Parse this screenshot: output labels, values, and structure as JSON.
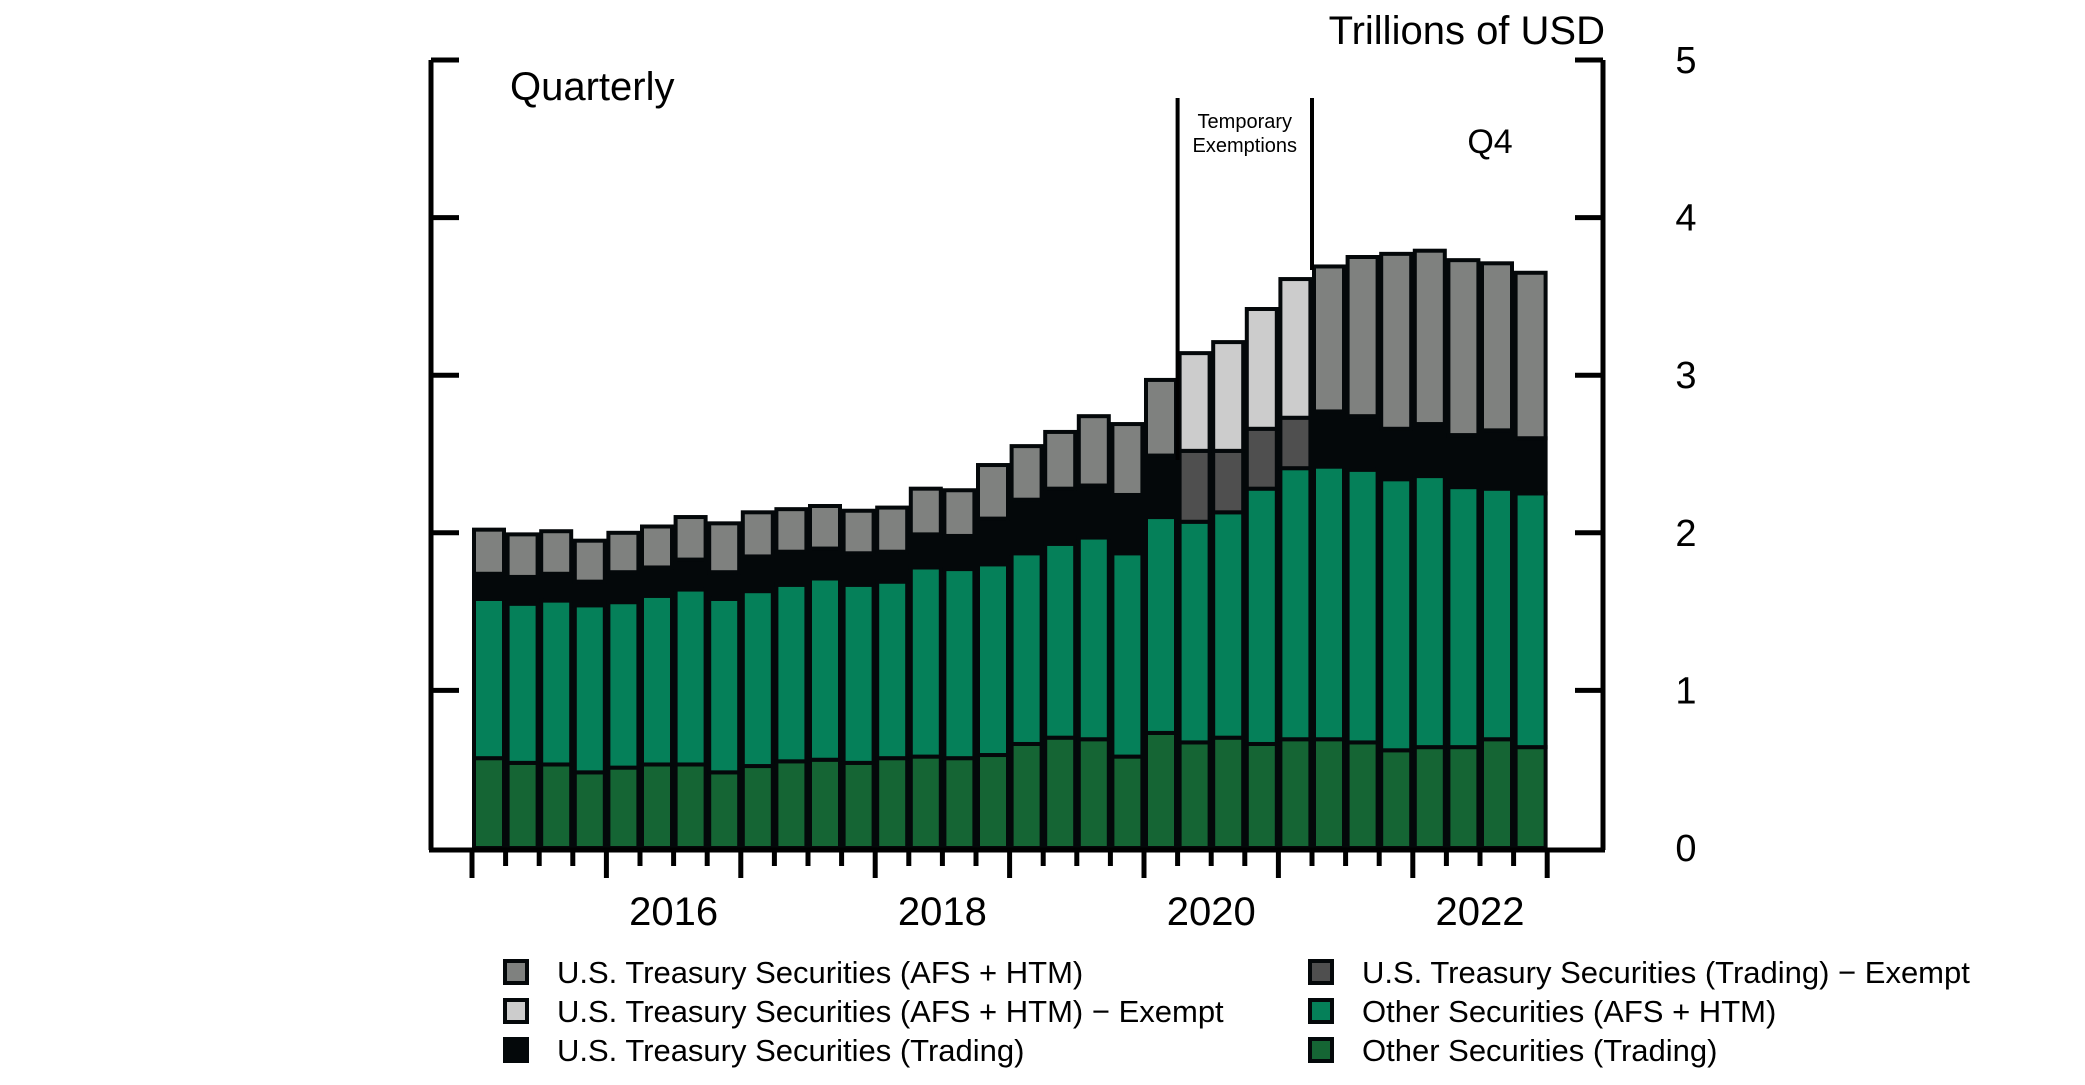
{
  "chart_data": {
    "type": "bar",
    "stacked": true,
    "frequency_label": "Quarterly",
    "ylabel": "Trillions of USD",
    "ylim": [
      0,
      5
    ],
    "yticks": [
      0,
      1,
      2,
      3,
      4,
      5
    ],
    "ytick_labels": [
      "0",
      "1",
      "2",
      "3",
      "4",
      "5"
    ],
    "xtick_labels": [
      {
        "label": "2016",
        "quarter_index": 6
      },
      {
        "label": "2018",
        "quarter_index": 14
      },
      {
        "label": "2020",
        "quarter_index": 22
      },
      {
        "label": "2022",
        "quarter_index": 30
      }
    ],
    "annotations": {
      "period_label_line1": "Temporary",
      "period_label_line2": "Exemptions",
      "period_start_index": 21,
      "period_end_index": 25,
      "latest_label": "Q4"
    },
    "categories": [
      "2015Q1",
      "2015Q2",
      "2015Q3",
      "2015Q4",
      "2016Q1",
      "2016Q2",
      "2016Q3",
      "2016Q4",
      "2017Q1",
      "2017Q2",
      "2017Q3",
      "2017Q4",
      "2018Q1",
      "2018Q2",
      "2018Q3",
      "2018Q4",
      "2019Q1",
      "2019Q2",
      "2019Q3",
      "2019Q4",
      "2020Q1",
      "2020Q2",
      "2020Q3",
      "2020Q4",
      "2021Q1",
      "2021Q2",
      "2021Q3",
      "2021Q4",
      "2022Q1",
      "2022Q2",
      "2022Q3",
      "2022Q4"
    ],
    "series": [
      {
        "name": "Other Securities (Trading)",
        "color": "#156534",
        "values": [
          0.57,
          0.54,
          0.53,
          0.48,
          0.51,
          0.53,
          0.53,
          0.48,
          0.52,
          0.55,
          0.56,
          0.54,
          0.57,
          0.58,
          0.57,
          0.59,
          0.66,
          0.7,
          0.69,
          0.58,
          0.73,
          0.67,
          0.7,
          0.66,
          0.69,
          0.69,
          0.67,
          0.62,
          0.64,
          0.64,
          0.69,
          0.64
        ]
      },
      {
        "name": "Other Securities (AFS + HTM)",
        "color": "#058059",
        "values": [
          1.01,
          1.01,
          1.04,
          1.06,
          1.05,
          1.07,
          1.11,
          1.1,
          1.11,
          1.12,
          1.15,
          1.13,
          1.12,
          1.2,
          1.2,
          1.21,
          1.21,
          1.23,
          1.28,
          1.29,
          1.37,
          1.4,
          1.43,
          1.62,
          1.72,
          1.73,
          1.73,
          1.72,
          1.72,
          1.65,
          1.59,
          1.61
        ]
      },
      {
        "name": "U.S. Treasury Securities (Trading)",
        "color": "#04080a",
        "values": [
          0.16,
          0.17,
          0.17,
          0.15,
          0.19,
          0.18,
          0.19,
          0.17,
          0.22,
          0.21,
          0.19,
          0.2,
          0.19,
          0.21,
          0.21,
          0.29,
          0.34,
          0.35,
          0.33,
          0.37,
          0.39,
          0,
          0,
          0,
          0,
          0.35,
          0.34,
          0.32,
          0.33,
          0.33,
          0.37,
          0.35
        ]
      },
      {
        "name": "U.S. Treasury Securities (Trading) − Exempt",
        "color": "#4f4f4f",
        "values": [
          0,
          0,
          0,
          0,
          0,
          0,
          0,
          0,
          0,
          0,
          0,
          0,
          0,
          0,
          0,
          0,
          0,
          0,
          0,
          0,
          0,
          0.45,
          0.39,
          0.38,
          0.32,
          0,
          0,
          0,
          0,
          0,
          0,
          0
        ]
      },
      {
        "name": "U.S. Treasury Securities (AFS + HTM) − Exempt",
        "color": "#cccccc",
        "values": [
          0,
          0,
          0,
          0,
          0,
          0,
          0,
          0,
          0,
          0,
          0,
          0,
          0,
          0,
          0,
          0,
          0,
          0,
          0,
          0,
          0,
          0.62,
          0.69,
          0.76,
          0.88,
          0,
          0,
          0,
          0,
          0,
          0,
          0
        ]
      },
      {
        "name": "U.S. Treasury Securities (AFS + HTM)",
        "color": "#7f817f",
        "values": [
          0.28,
          0.27,
          0.27,
          0.26,
          0.25,
          0.26,
          0.27,
          0.31,
          0.28,
          0.27,
          0.27,
          0.27,
          0.28,
          0.29,
          0.29,
          0.34,
          0.34,
          0.36,
          0.44,
          0.45,
          0.48,
          0,
          0,
          0,
          0,
          0.92,
          1.01,
          1.11,
          1.1,
          1.11,
          1.06,
          1.05
        ]
      }
    ],
    "legend": {
      "placement": "bottom",
      "columns": [
        [
          "U.S. Treasury Securities (AFS + HTM)",
          "U.S. Treasury Securities (AFS + HTM) − Exempt",
          "U.S. Treasury Securities (Trading)"
        ],
        [
          "U.S. Treasury Securities (Trading) − Exempt",
          "Other Securities (AFS + HTM)",
          "Other Securities (Trading)"
        ]
      ]
    },
    "grid": false
  }
}
